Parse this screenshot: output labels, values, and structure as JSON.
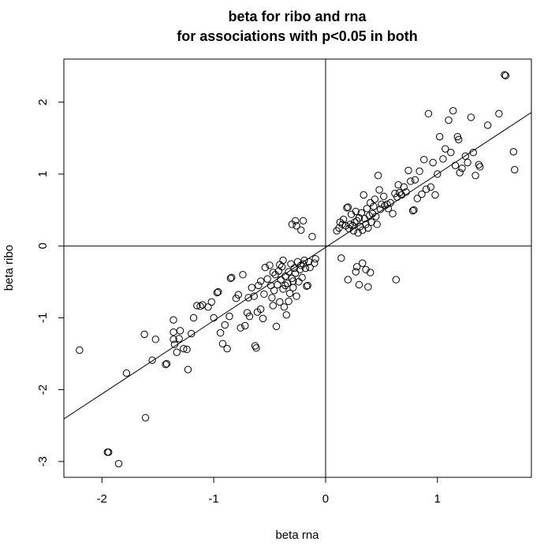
{
  "chart_data": {
    "type": "scatter",
    "title_line1": "beta for ribo and rna",
    "title_line2": "for associations with p<0.05 in both",
    "xlabel": "beta rna",
    "ylabel": "beta ribo",
    "xlim": [
      -2.34,
      1.84
    ],
    "ylim": [
      -3.22,
      2.6
    ],
    "xticks": [
      -2,
      -1,
      0,
      1
    ],
    "yticks": [
      -3,
      -2,
      -1,
      0,
      1,
      2
    ],
    "reference_lines": {
      "h": 0,
      "v": 0
    },
    "regression_line": {
      "intercept": -0.02,
      "slope": 1.02
    },
    "points": [
      [
        -2.2,
        -1.45
      ],
      [
        -1.95,
        -2.87
      ],
      [
        -1.94,
        -2.87
      ],
      [
        -1.85,
        -3.03
      ],
      [
        -1.78,
        -1.77
      ],
      [
        -1.62,
        -1.23
      ],
      [
        -1.61,
        -2.39
      ],
      [
        -1.55,
        -1.59
      ],
      [
        -1.52,
        -1.3
      ],
      [
        -1.43,
        -1.65
      ],
      [
        -1.42,
        -1.64
      ],
      [
        -1.36,
        -1.03
      ],
      [
        -1.36,
        -1.2
      ],
      [
        -1.36,
        -1.3
      ],
      [
        -1.35,
        -1.37
      ],
      [
        -1.33,
        -1.48
      ],
      [
        -1.31,
        -1.29
      ],
      [
        -1.3,
        -1.18
      ],
      [
        -1.27,
        -1.43
      ],
      [
        -1.24,
        -1.44
      ],
      [
        -1.23,
        -1.72
      ],
      [
        -1.2,
        -1.22
      ],
      [
        -1.18,
        -1.0
      ],
      [
        -1.15,
        -0.83
      ],
      [
        -1.12,
        -0.84
      ],
      [
        -1.1,
        -0.82
      ],
      [
        -1.05,
        -0.85
      ],
      [
        -1.02,
        -0.78
      ],
      [
        -1.0,
        -1.0
      ],
      [
        -0.97,
        -0.65
      ],
      [
        -0.96,
        -0.64
      ],
      [
        -0.94,
        -1.21
      ],
      [
        -0.92,
        -1.36
      ],
      [
        -0.9,
        -1.1
      ],
      [
        -0.88,
        -1.43
      ],
      [
        -0.86,
        -0.98
      ],
      [
        -0.85,
        -0.45
      ],
      [
        -0.84,
        -0.44
      ],
      [
        -0.8,
        -0.73
      ],
      [
        -0.78,
        -0.68
      ],
      [
        -0.76,
        -1.14
      ],
      [
        -0.74,
        -0.4
      ],
      [
        -0.72,
        -1.11
      ],
      [
        -0.7,
        -0.93
      ],
      [
        -0.69,
        -0.72
      ],
      [
        -0.68,
        -0.98
      ],
      [
        -0.66,
        -0.58
      ],
      [
        -0.64,
        -0.7
      ],
      [
        -0.63,
        -1.39
      ],
      [
        -0.62,
        -1.42
      ],
      [
        -0.61,
        -0.92
      ],
      [
        -0.6,
        -0.55
      ],
      [
        -0.58,
        -0.88
      ],
      [
        -0.58,
        -0.49
      ],
      [
        -0.56,
        -1.01
      ],
      [
        -0.55,
        -0.67
      ],
      [
        -0.54,
        -0.3
      ],
      [
        -0.52,
        -0.46
      ],
      [
        -0.5,
        -0.27
      ],
      [
        -0.49,
        -0.55
      ],
      [
        -0.48,
        -0.72
      ],
      [
        -0.47,
        -0.83
      ],
      [
        -0.46,
        -0.62
      ],
      [
        -0.45,
        -0.4
      ],
      [
        -0.44,
        -1.12
      ],
      [
        -0.43,
        -0.54
      ],
      [
        -0.42,
        -0.35
      ],
      [
        -0.41,
        -0.78
      ],
      [
        -0.4,
        -0.47
      ],
      [
        -0.39,
        -0.29
      ],
      [
        -0.38,
        -0.6
      ],
      [
        -0.37,
        -0.85
      ],
      [
        -0.36,
        -0.42
      ],
      [
        -0.35,
        -0.96
      ],
      [
        -0.34,
        -0.52
      ],
      [
        -0.33,
        -0.36
      ],
      [
        -0.32,
        -0.66
      ],
      [
        -0.31,
        -0.25
      ],
      [
        -0.3,
        -0.45
      ],
      [
        -0.29,
        -0.58
      ],
      [
        -0.28,
        -0.31
      ],
      [
        -0.27,
        -0.38
      ],
      [
        -0.26,
        -0.7
      ],
      [
        -0.25,
        -0.22
      ],
      [
        -0.24,
        -0.5
      ],
      [
        -0.23,
        -0.33
      ],
      [
        -0.22,
        -0.27
      ],
      [
        -0.21,
        -0.44
      ],
      [
        -0.2,
        -0.25
      ],
      [
        -0.19,
        -0.2
      ],
      [
        -0.18,
        -0.31
      ],
      [
        -0.17,
        -0.56
      ],
      [
        -0.16,
        -0.55
      ],
      [
        -0.15,
        -0.22
      ],
      [
        -0.14,
        -0.3
      ],
      [
        -0.12,
        0.13
      ],
      [
        -0.1,
        -0.24
      ],
      [
        -0.09,
        -0.18
      ],
      [
        -0.27,
        0.35
      ],
      [
        -0.3,
        0.3
      ],
      [
        -0.26,
        0.28
      ],
      [
        -0.2,
        0.35
      ],
      [
        -0.22,
        0.22
      ],
      [
        -0.38,
        -0.2
      ],
      [
        -0.41,
        -0.26
      ],
      [
        -0.47,
        -0.37
      ],
      [
        -0.36,
        -0.55
      ],
      [
        -0.29,
        -0.49
      ],
      [
        -0.33,
        -0.77
      ],
      [
        0.1,
        0.21
      ],
      [
        0.12,
        0.25
      ],
      [
        0.13,
        0.33
      ],
      [
        0.15,
        0.3
      ],
      [
        0.16,
        0.37
      ],
      [
        0.18,
        0.28
      ],
      [
        0.19,
        0.53
      ],
      [
        0.2,
        0.54
      ],
      [
        0.21,
        0.24
      ],
      [
        0.22,
        0.3
      ],
      [
        0.23,
        0.44
      ],
      [
        0.24,
        0.28
      ],
      [
        0.25,
        0.21
      ],
      [
        0.26,
        0.33
      ],
      [
        0.27,
        0.48
      ],
      [
        0.28,
        0.35
      ],
      [
        0.29,
        0.18
      ],
      [
        0.3,
        0.39
      ],
      [
        0.31,
        0.27
      ],
      [
        0.32,
        0.46
      ],
      [
        0.33,
        0.22
      ],
      [
        0.34,
        0.71
      ],
      [
        0.35,
        0.38
      ],
      [
        0.36,
        0.3
      ],
      [
        0.37,
        0.52
      ],
      [
        0.38,
        0.25
      ],
      [
        0.39,
        0.42
      ],
      [
        0.4,
        0.6
      ],
      [
        0.41,
        0.33
      ],
      [
        0.42,
        0.45
      ],
      [
        0.43,
        0.55
      ],
      [
        0.44,
        0.65
      ],
      [
        0.45,
        0.41
      ],
      [
        0.46,
        0.3
      ],
      [
        0.47,
        0.98
      ],
      [
        0.48,
        0.78
      ],
      [
        0.49,
        0.51
      ],
      [
        0.5,
        0.58
      ],
      [
        0.52,
        0.69
      ],
      [
        0.53,
        0.56
      ],
      [
        0.55,
        0.58
      ],
      [
        0.56,
        0.52
      ],
      [
        0.58,
        0.6
      ],
      [
        0.6,
        0.45
      ],
      [
        0.62,
        0.73
      ],
      [
        0.64,
        0.68
      ],
      [
        0.65,
        0.85
      ],
      [
        0.66,
        0.74
      ],
      [
        0.68,
        0.71
      ],
      [
        0.7,
        0.82
      ],
      [
        0.72,
        0.75
      ],
      [
        0.74,
        1.05
      ],
      [
        0.76,
        0.9
      ],
      [
        0.78,
        0.49
      ],
      [
        0.79,
        0.5
      ],
      [
        0.8,
        0.92
      ],
      [
        0.82,
        0.66
      ],
      [
        0.84,
        1.04
      ],
      [
        0.86,
        0.72
      ],
      [
        0.88,
        1.2
      ],
      [
        0.9,
        0.79
      ],
      [
        0.92,
        1.84
      ],
      [
        0.94,
        0.82
      ],
      [
        0.96,
        1.16
      ],
      [
        0.98,
        0.71
      ],
      [
        1.0,
        1.0
      ],
      [
        1.02,
        1.52
      ],
      [
        1.05,
        1.21
      ],
      [
        1.07,
        1.35
      ],
      [
        1.1,
        1.75
      ],
      [
        1.12,
        1.3
      ],
      [
        1.14,
        1.88
      ],
      [
        1.16,
        1.12
      ],
      [
        1.18,
        1.52
      ],
      [
        1.19,
        1.48
      ],
      [
        1.2,
        1.02
      ],
      [
        1.22,
        1.08
      ],
      [
        1.25,
        1.25
      ],
      [
        1.27,
        1.16
      ],
      [
        1.3,
        1.79
      ],
      [
        1.32,
        1.3
      ],
      [
        1.34,
        0.98
      ],
      [
        1.37,
        1.13
      ],
      [
        1.38,
        1.1
      ],
      [
        1.45,
        1.68
      ],
      [
        1.55,
        1.84
      ],
      [
        1.6,
        2.38
      ],
      [
        1.61,
        2.37
      ],
      [
        1.68,
        1.31
      ],
      [
        1.69,
        1.06
      ],
      [
        0.14,
        -0.17
      ],
      [
        0.2,
        -0.47
      ],
      [
        0.27,
        -0.36
      ],
      [
        0.28,
        -0.29
      ],
      [
        0.3,
        -0.54
      ],
      [
        0.33,
        -0.24
      ],
      [
        0.36,
        -0.33
      ],
      [
        0.38,
        -0.57
      ],
      [
        0.4,
        -0.37
      ],
      [
        0.63,
        -0.47
      ]
    ]
  }
}
